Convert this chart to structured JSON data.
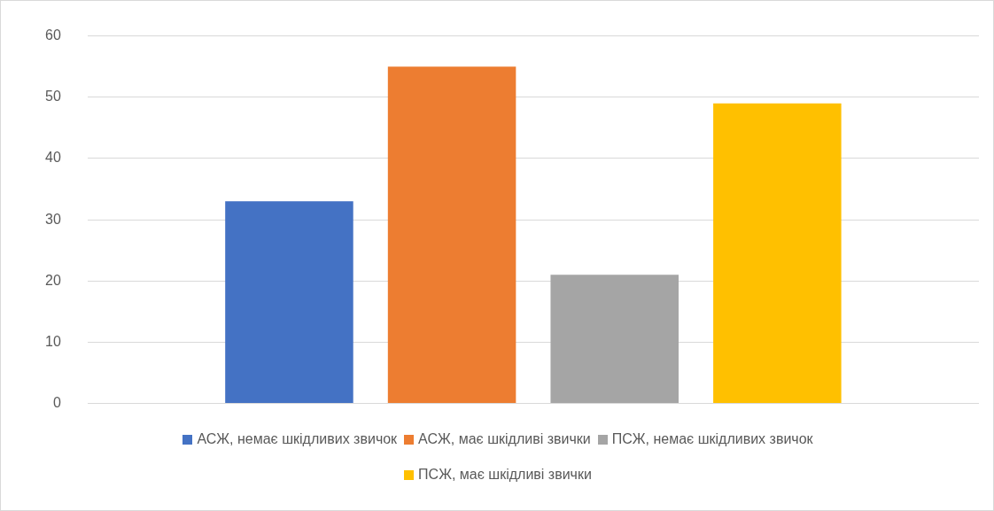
{
  "chart_data": {
    "type": "bar",
    "categories": [
      null
    ],
    "series": [
      {
        "name": "АСЖ, немає шкідливих звичок",
        "color": "#4472c4",
        "values": [
          33
        ]
      },
      {
        "name": "АСЖ, має шкідливі звички",
        "color": "#ed7d31",
        "values": [
          55
        ]
      },
      {
        "name": "ПСЖ, немає шкідливих звичок",
        "color": "#a5a5a5",
        "values": [
          21
        ]
      },
      {
        "name": "ПСЖ, має шкідливі звички",
        "color": "#ffc000",
        "values": [
          49
        ]
      }
    ],
    "ylim": [
      0,
      60
    ],
    "yticks": [
      0,
      10,
      20,
      30,
      40,
      50,
      60
    ],
    "grid": "y",
    "legend": "bottom"
  }
}
